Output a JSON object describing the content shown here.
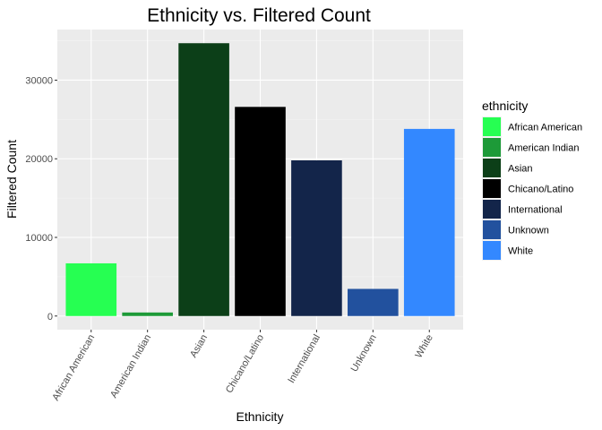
{
  "chart_data": {
    "type": "bar",
    "title": "Ethnicity vs. Filtered Count",
    "xlabel": "Ethnicity",
    "ylabel": "Filtered Count",
    "categories": [
      "African American",
      "American Indian",
      "Asian",
      "Chicano/Latino",
      "International",
      "Unknown",
      "White"
    ],
    "values": [
      6700,
      450,
      34700,
      26600,
      19800,
      3450,
      23800
    ],
    "colors": [
      "#26ff52",
      "#1d9a38",
      "#0c3f18",
      "#000000",
      "#13254a",
      "#22519e",
      "#3388ff"
    ],
    "ylim": [
      -1736,
      36436
    ],
    "yticks": [
      0,
      10000,
      20000,
      30000
    ],
    "ytick_labels": [
      "0",
      "10000",
      "20000",
      "30000"
    ],
    "grid": true,
    "legend": {
      "title": "ethnicity",
      "placement": "right",
      "entries": [
        "African American",
        "American Indian",
        "Asian",
        "Chicano/Latino",
        "International",
        "Unknown",
        "White"
      ]
    }
  }
}
